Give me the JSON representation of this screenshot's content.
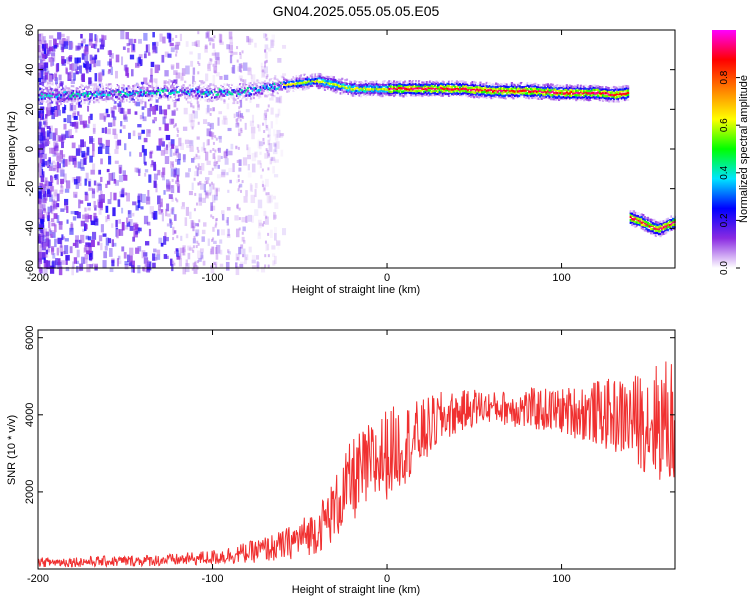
{
  "title": "GN04.2025.055.05.05.E05",
  "chart_data": [
    {
      "type": "heatmap",
      "xlabel": "Height of straight line (km)",
      "ylabel": "Frequency (Hz)",
      "xlim": [
        -200,
        165
      ],
      "ylim": [
        -60,
        60
      ],
      "xticks": [
        -200,
        -100,
        0,
        100
      ],
      "yticks": [
        -60,
        -40,
        -20,
        0,
        20,
        40,
        60
      ],
      "colorbar": {
        "label": "Normalized spectral amplitude",
        "range": [
          0,
          1
        ],
        "ticks": [
          "0.0",
          "0.2",
          "0.4",
          "0.6",
          "0.8"
        ],
        "colors": [
          "#ffffff",
          "#8a2be2",
          "#0000ff",
          "#00e5ff",
          "#00ff00",
          "#ffff00",
          "#ff8000",
          "#ff0000",
          "#ff00ff"
        ]
      },
      "ridges": [
        {
          "x": [
            -200,
            -180,
            -160,
            -140,
            -120,
            -100,
            -80,
            -60,
            -40,
            -20,
            0,
            20,
            40,
            60,
            80,
            100,
            120,
            130,
            138
          ],
          "y": [
            28,
            28,
            29,
            29,
            30,
            29,
            30,
            33,
            35,
            31,
            31,
            31,
            31,
            30,
            30,
            29,
            29,
            28,
            29
          ]
        },
        {
          "x": [
            139,
            145,
            150,
            155,
            160,
            165
          ],
          "y": [
            -34,
            -36,
            -38,
            -40,
            -38,
            -36
          ]
        }
      ]
    },
    {
      "type": "line",
      "xlabel": "Height of straight line (km)",
      "ylabel": "SNR (10 * v/v)",
      "xlim": [
        -200,
        165
      ],
      "ylim": [
        0,
        6200
      ],
      "xticks": [
        -200,
        -100,
        0,
        100
      ],
      "yticks": [
        2000,
        4000,
        6000
      ],
      "color": "#f03030",
      "envelope": {
        "x": [
          -200,
          -150,
          -120,
          -100,
          -80,
          -60,
          -40,
          -30,
          -20,
          0,
          20,
          30,
          40,
          50,
          60,
          80,
          100,
          120,
          140,
          150,
          165
        ],
        "low": [
          50,
          60,
          80,
          100,
          150,
          200,
          400,
          700,
          1200,
          1800,
          2600,
          3200,
          3500,
          3700,
          3800,
          3600,
          3500,
          3200,
          2800,
          2400,
          2000
        ],
        "high": [
          300,
          350,
          400,
          500,
          700,
          1000,
          1600,
          2400,
          3400,
          4200,
          4400,
          4600,
          4600,
          4700,
          4600,
          4700,
          4700,
          4900,
          5000,
          5300,
          5600
        ]
      }
    }
  ]
}
